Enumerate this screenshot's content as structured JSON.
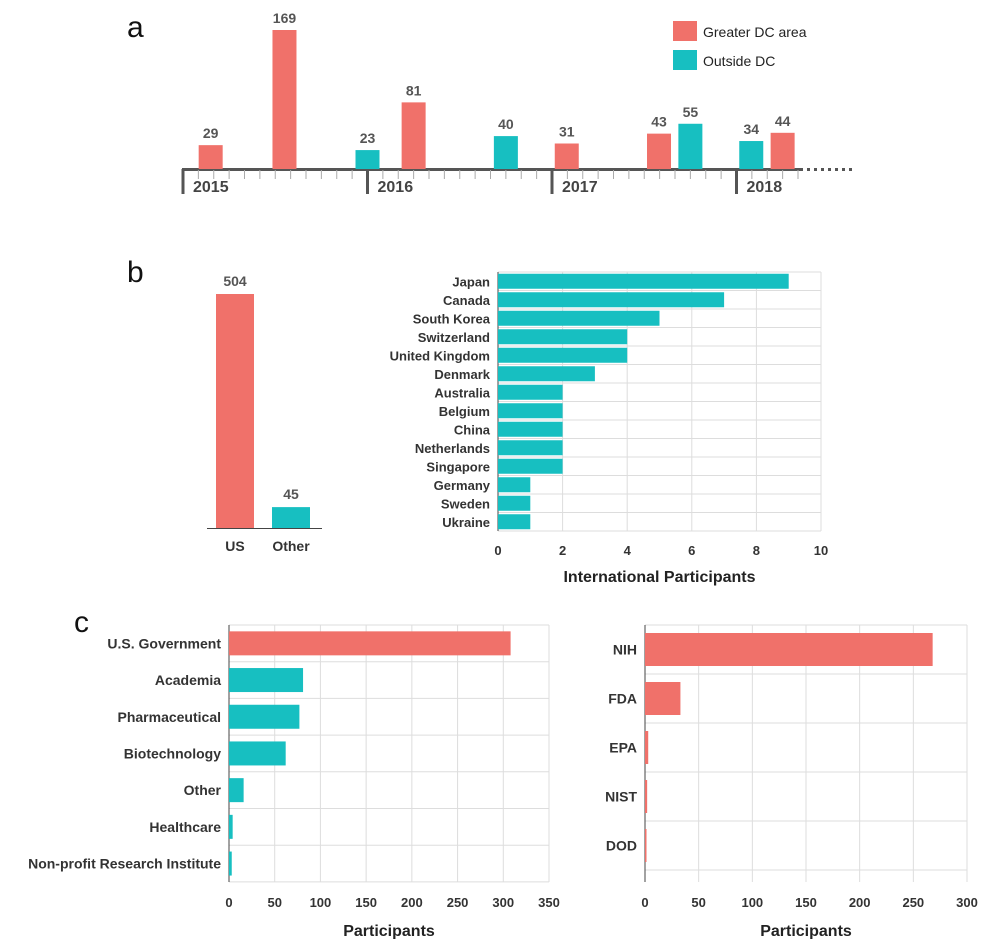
{
  "colors": {
    "greater_dc": "#f0716a",
    "outside_dc": "#17bfc1",
    "grid": "#dddddd",
    "axis": "#555555"
  },
  "panels": {
    "a": "a",
    "b": "b",
    "c": "c"
  },
  "chart_data": [
    {
      "panel": "a",
      "type": "bar",
      "legend": [
        "Greater DC area",
        "Outside DC"
      ],
      "legend_position": "top-right",
      "years": [
        "2015",
        "2016",
        "2017",
        "2018"
      ],
      "events": [
        {
          "t": 2015.15,
          "value": 29,
          "series": "Greater DC area"
        },
        {
          "t": 2015.55,
          "value": 169,
          "series": "Greater DC area"
        },
        {
          "t": 2016.0,
          "value": 23,
          "series": "Outside DC"
        },
        {
          "t": 2016.25,
          "value": 81,
          "series": "Greater DC area"
        },
        {
          "t": 2016.75,
          "value": 40,
          "series": "Outside DC"
        },
        {
          "t": 2017.08,
          "value": 31,
          "series": "Greater DC area"
        },
        {
          "t": 2017.58,
          "value": 43,
          "series": "Greater DC area"
        },
        {
          "t": 2017.75,
          "value": 55,
          "series": "Outside DC"
        },
        {
          "t": 2018.08,
          "value": 34,
          "series": "Outside DC"
        },
        {
          "t": 2018.25,
          "value": 44,
          "series": "Greater DC area"
        }
      ]
    },
    {
      "panel": "b-left",
      "type": "bar",
      "categories": [
        "US",
        "Other"
      ],
      "values": [
        504,
        45
      ],
      "colors": [
        "greater_dc",
        "outside_dc"
      ]
    },
    {
      "panel": "b-right",
      "type": "bar",
      "orientation": "horizontal",
      "categories": [
        "Japan",
        "Canada",
        "South Korea",
        "Switzerland",
        "United Kingdom",
        "Denmark",
        "Australia",
        "Belgium",
        "China",
        "Netherlands",
        "Singapore",
        "Germany",
        "Sweden",
        "Ukraine"
      ],
      "values": [
        9,
        7,
        5,
        4,
        4,
        3,
        2,
        2,
        2,
        2,
        2,
        1,
        1,
        1
      ],
      "xlabel": "International Participants",
      "xlim": [
        0,
        10
      ],
      "xticks": [
        0,
        2,
        4,
        6,
        8,
        10
      ],
      "grid": true
    },
    {
      "panel": "c-left",
      "type": "bar",
      "orientation": "horizontal",
      "categories": [
        "U.S. Government",
        "Academia",
        "Pharmaceutical",
        "Biotechnology",
        "Other",
        "Healthcare",
        "Non-profit Research Institute"
      ],
      "values": [
        308,
        81,
        77,
        62,
        16,
        4,
        3
      ],
      "highlight_first": true,
      "xlabel": "Participants",
      "xlim": [
        0,
        350
      ],
      "xticks": [
        0,
        50,
        100,
        150,
        200,
        250,
        300,
        350
      ],
      "grid": true
    },
    {
      "panel": "c-right",
      "type": "bar",
      "orientation": "horizontal",
      "categories": [
        "NIH",
        "FDA",
        "EPA",
        "NIST",
        "DOD"
      ],
      "values": [
        268,
        33,
        3,
        2,
        1
      ],
      "xlabel": "Participants",
      "xlim": [
        0,
        300
      ],
      "xticks": [
        0,
        50,
        100,
        150,
        200,
        250,
        300
      ],
      "grid": true
    }
  ]
}
